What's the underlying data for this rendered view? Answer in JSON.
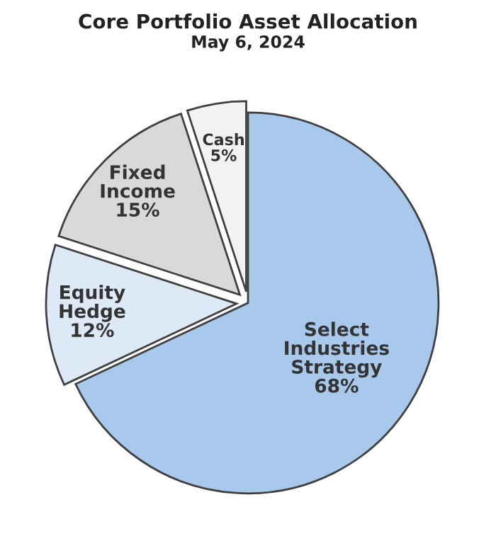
{
  "chart_data": {
    "type": "pie",
    "title": "Core Portfolio Asset Allocation",
    "subtitle": "May 6, 2024",
    "categories": [
      "Select\nIndustries\nStrategy",
      "Equity\nHedge",
      "Fixed\nIncome",
      "Cash"
    ],
    "values": [
      68,
      12,
      15,
      5
    ],
    "colors": [
      "#a8c8ec",
      "#dde9f7",
      "#d9d9d9",
      "#f2f2f2"
    ],
    "value_labels": [
      "68%",
      "12%",
      "15%",
      "5%"
    ]
  }
}
